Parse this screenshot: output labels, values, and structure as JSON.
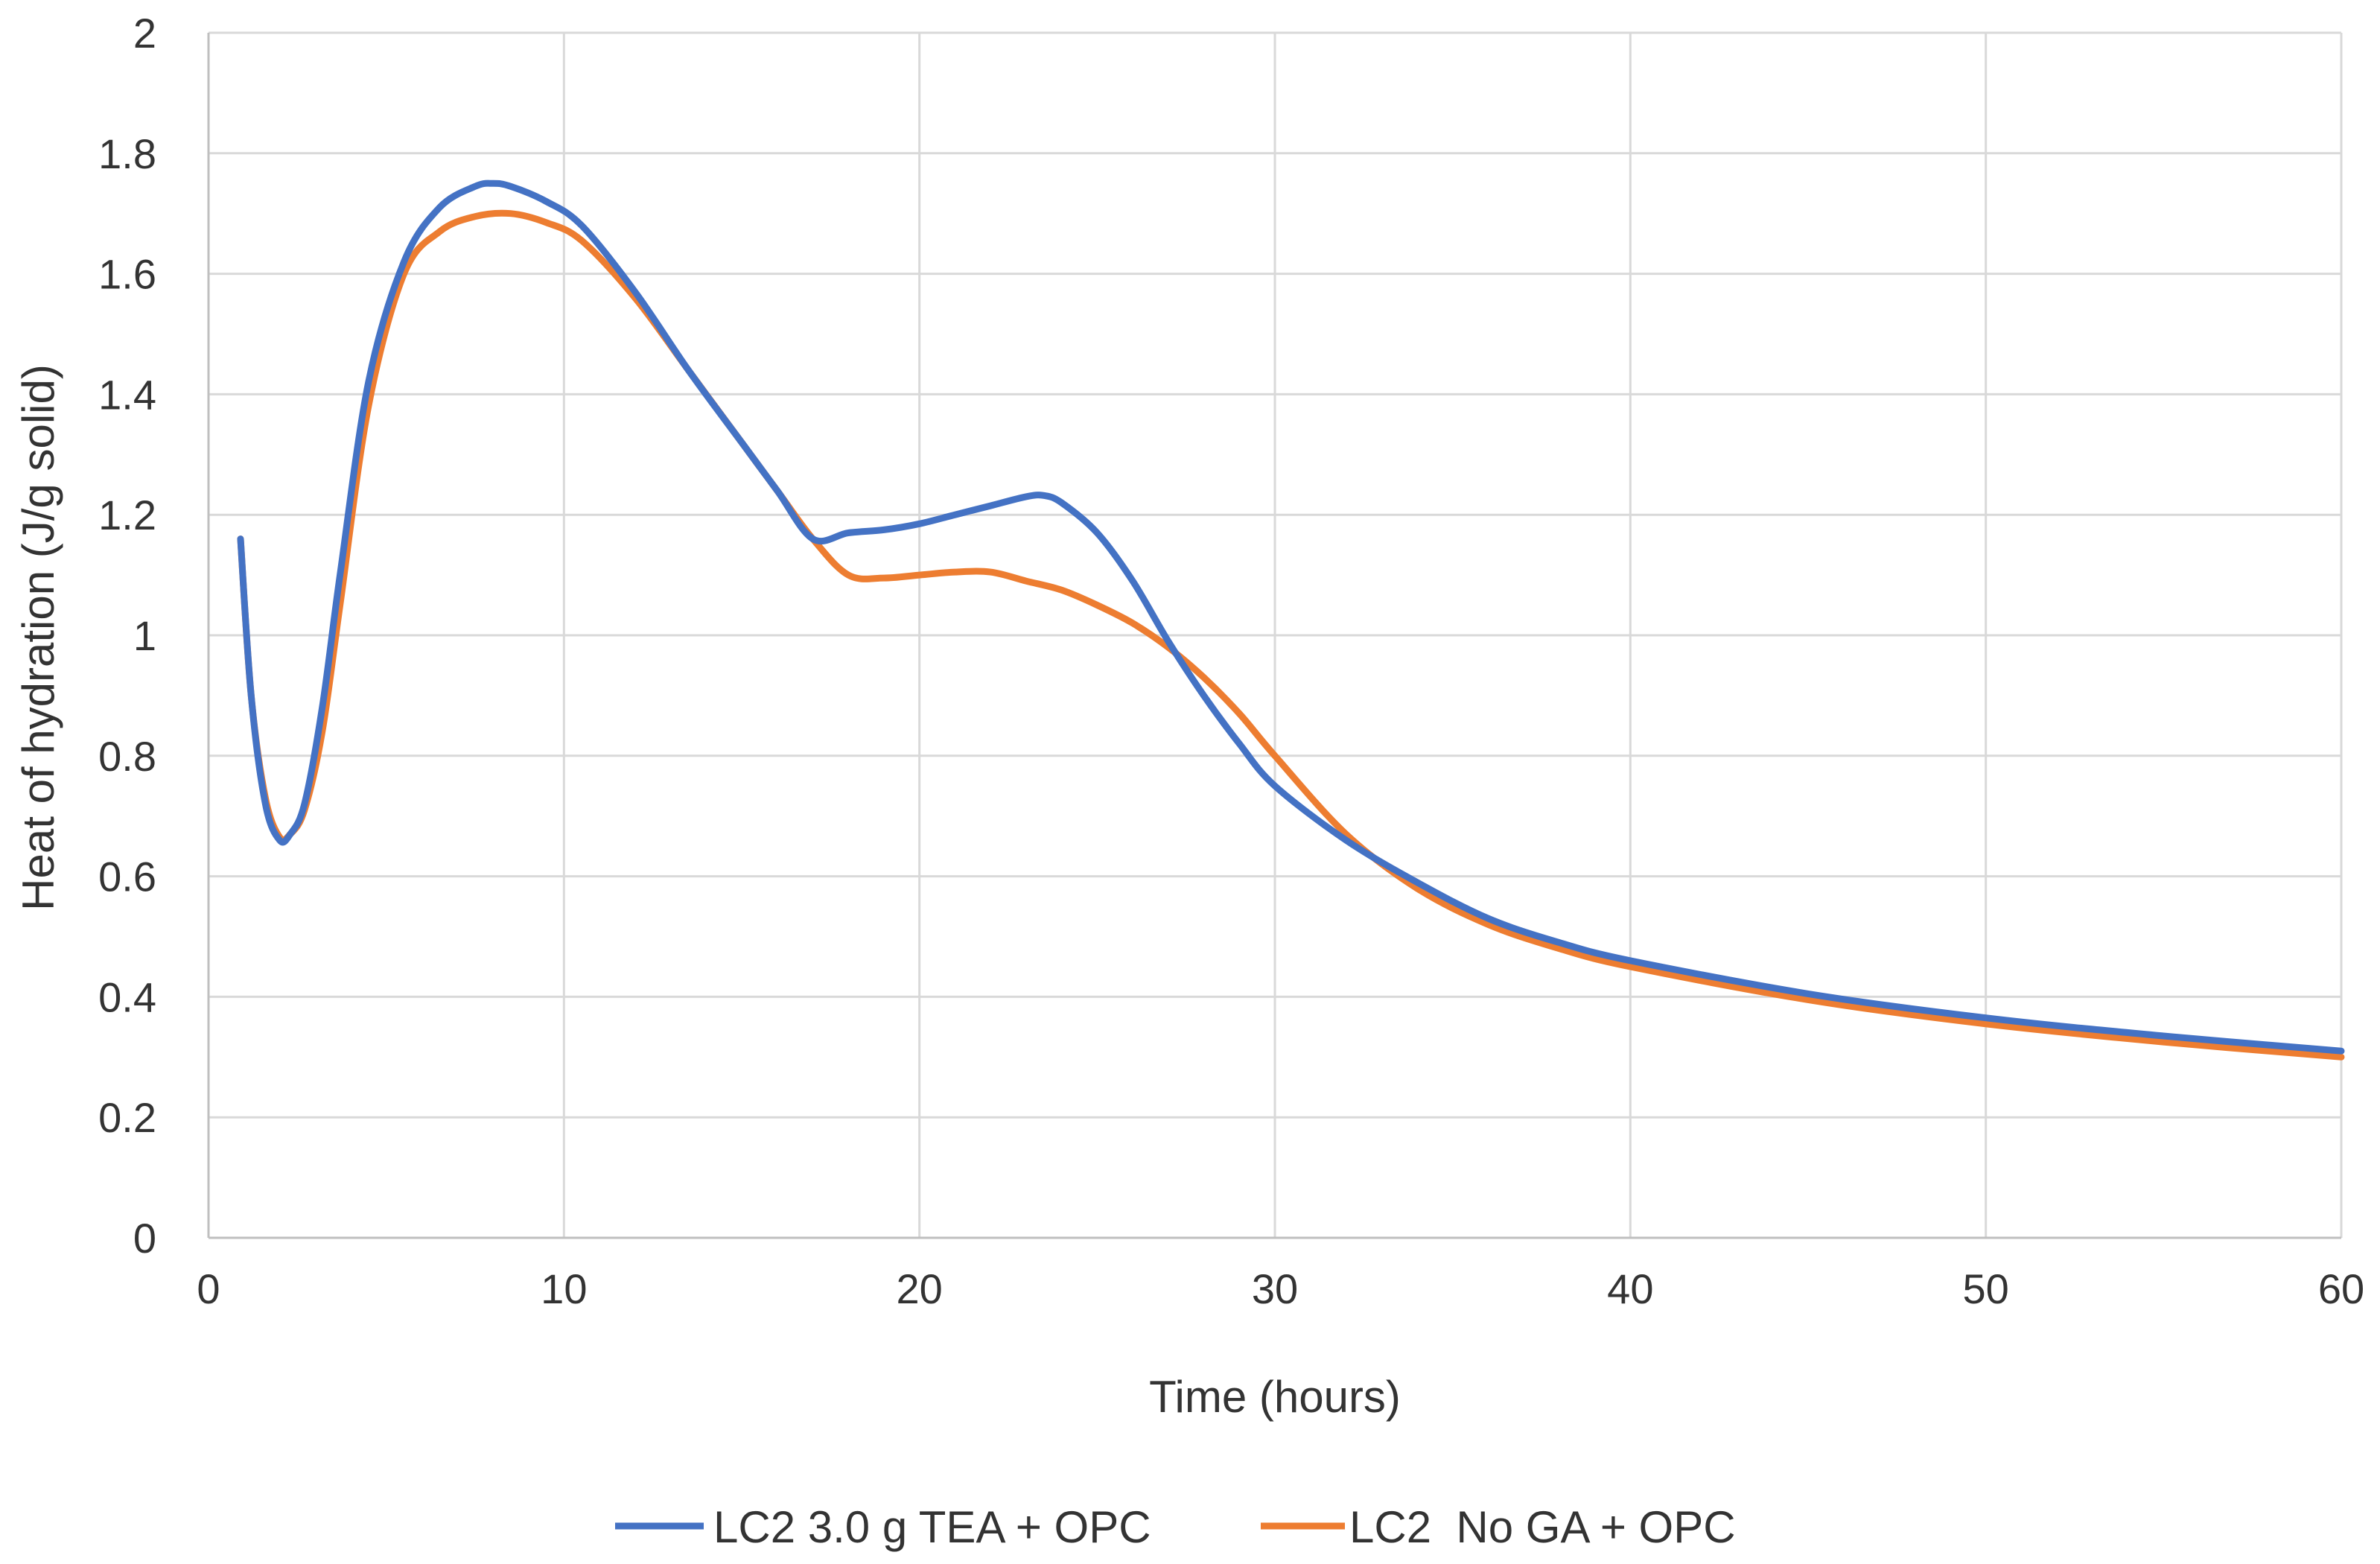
{
  "chart_data": {
    "type": "line",
    "title": "",
    "xlabel": "Time (hours)",
    "ylabel": "Heat of hydration (J/g solid)",
    "xlim": [
      0,
      60
    ],
    "ylim": [
      0,
      2
    ],
    "xticks": [
      0,
      10,
      20,
      30,
      40,
      50,
      60
    ],
    "yticks": [
      0,
      0.2,
      0.4,
      0.6,
      0.8,
      1,
      1.2,
      1.4,
      1.6,
      1.8,
      2
    ],
    "grid": true,
    "legend_position": "bottom",
    "series": [
      {
        "name": "LC2 3.0 g TEA + OPC",
        "color": "#4472c4",
        "x": [
          0.9,
          1.2,
          1.6,
          2.0,
          2.3,
          2.7,
          3.2,
          3.7,
          4.5,
          5.5,
          6.5,
          7.5,
          8.0,
          8.5,
          9.5,
          10.5,
          12,
          13.5,
          15,
          16,
          17,
          18,
          19,
          20,
          21,
          22,
          23,
          23.5,
          24,
          25,
          26,
          27,
          28,
          29,
          30,
          32,
          34,
          36,
          38,
          40,
          45,
          50,
          55,
          60
        ],
        "y": [
          1.16,
          0.9,
          0.72,
          0.66,
          0.67,
          0.72,
          0.88,
          1.1,
          1.42,
          1.62,
          1.71,
          1.745,
          1.75,
          1.745,
          1.72,
          1.68,
          1.57,
          1.44,
          1.32,
          1.24,
          1.16,
          1.17,
          1.175,
          1.185,
          1.2,
          1.215,
          1.23,
          1.232,
          1.22,
          1.17,
          1.09,
          0.99,
          0.9,
          0.82,
          0.75,
          0.66,
          0.59,
          0.53,
          0.49,
          0.46,
          0.405,
          0.365,
          0.335,
          0.31
        ]
      },
      {
        "name": "LC2  No GA + OPC",
        "color": "#ed7d31",
        "x": [
          0.9,
          1.2,
          1.6,
          2.0,
          2.3,
          2.7,
          3.2,
          3.7,
          4.5,
          5.5,
          6.5,
          7.5,
          8.5,
          9.5,
          10.5,
          12,
          13.5,
          15,
          16,
          17,
          18,
          19,
          20,
          21,
          22,
          23,
          24,
          25,
          26,
          27,
          28,
          29,
          30,
          32,
          34,
          36,
          38,
          40,
          45,
          50,
          55,
          60
        ],
        "y": [
          1.16,
          0.9,
          0.73,
          0.665,
          0.67,
          0.71,
          0.84,
          1.05,
          1.38,
          1.6,
          1.67,
          1.695,
          1.7,
          1.685,
          1.655,
          1.56,
          1.44,
          1.32,
          1.24,
          1.16,
          1.1,
          1.095,
          1.1,
          1.105,
          1.105,
          1.09,
          1.075,
          1.05,
          1.02,
          0.98,
          0.93,
          0.87,
          0.8,
          0.67,
          0.58,
          0.52,
          0.48,
          0.45,
          0.395,
          0.355,
          0.325,
          0.3
        ]
      }
    ]
  }
}
